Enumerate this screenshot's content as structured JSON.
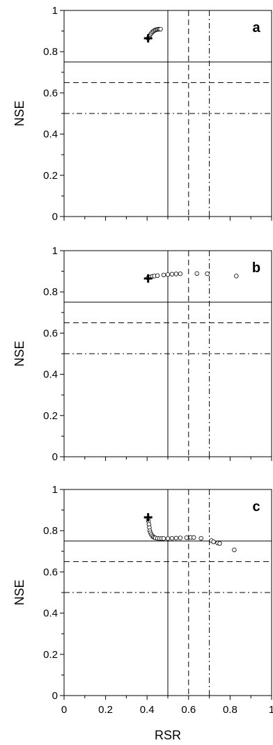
{
  "figure": {
    "xlabel": "RSR",
    "colors": {
      "axis": "#000000",
      "marker_fill": "#ffffff",
      "marker_stroke": "#000000"
    }
  },
  "chart_data": [
    {
      "type": "scatter",
      "panel_label": "a",
      "ylabel": "NSE",
      "xlim": [
        0,
        1
      ],
      "ylim": [
        0,
        1
      ],
      "xticks": [],
      "yticks": [
        "0",
        "0.2",
        "0.4",
        "0.6",
        "0.8",
        "1"
      ],
      "grid": false,
      "reference_lines": [
        {
          "orientation": "vertical",
          "value": 0.5,
          "style": "solid"
        },
        {
          "orientation": "vertical",
          "value": 0.6,
          "style": "dashed"
        },
        {
          "orientation": "vertical",
          "value": 0.7,
          "style": "dashdot"
        },
        {
          "orientation": "horizontal",
          "value": 0.75,
          "style": "solid"
        },
        {
          "orientation": "horizontal",
          "value": 0.65,
          "style": "dashed"
        },
        {
          "orientation": "horizontal",
          "value": 0.5,
          "style": "dashdot"
        }
      ],
      "cross_marker": {
        "x": 0.405,
        "y": 0.865
      },
      "points": [
        [
          0.405,
          0.865
        ],
        [
          0.41,
          0.874
        ],
        [
          0.415,
          0.882
        ],
        [
          0.42,
          0.889
        ],
        [
          0.425,
          0.895
        ],
        [
          0.43,
          0.899
        ],
        [
          0.435,
          0.903
        ],
        [
          0.44,
          0.905
        ],
        [
          0.445,
          0.907
        ],
        [
          0.45,
          0.908
        ],
        [
          0.455,
          0.909
        ],
        [
          0.46,
          0.909
        ],
        [
          0.465,
          0.909
        ]
      ]
    },
    {
      "type": "scatter",
      "panel_label": "b",
      "ylabel": "NSE",
      "xlim": [
        0,
        1
      ],
      "ylim": [
        0,
        1
      ],
      "xticks": [],
      "yticks": [
        "0",
        "0.2",
        "0.4",
        "0.6",
        "0.8",
        "1"
      ],
      "grid": false,
      "reference_lines": [
        {
          "orientation": "vertical",
          "value": 0.5,
          "style": "solid"
        },
        {
          "orientation": "vertical",
          "value": 0.6,
          "style": "dashed"
        },
        {
          "orientation": "vertical",
          "value": 0.7,
          "style": "dashdot"
        },
        {
          "orientation": "horizontal",
          "value": 0.75,
          "style": "solid"
        },
        {
          "orientation": "horizontal",
          "value": 0.65,
          "style": "dashed"
        },
        {
          "orientation": "horizontal",
          "value": 0.5,
          "style": "dashdot"
        }
      ],
      "cross_marker": {
        "x": 0.405,
        "y": 0.865
      },
      "points": [
        [
          0.405,
          0.868
        ],
        [
          0.415,
          0.872
        ],
        [
          0.425,
          0.875
        ],
        [
          0.435,
          0.877
        ],
        [
          0.45,
          0.879
        ],
        [
          0.48,
          0.882
        ],
        [
          0.5,
          0.884
        ],
        [
          0.52,
          0.886
        ],
        [
          0.54,
          0.887
        ],
        [
          0.56,
          0.888
        ],
        [
          0.64,
          0.889
        ],
        [
          0.69,
          0.888
        ],
        [
          0.83,
          0.877
        ]
      ]
    },
    {
      "type": "scatter",
      "panel_label": "c",
      "ylabel": "NSE",
      "xlabel": "RSR",
      "xlim": [
        0,
        1
      ],
      "ylim": [
        0,
        1
      ],
      "xticks": [
        "0",
        "0.2",
        "0.4",
        "0.6",
        "0.8",
        "1"
      ],
      "yticks": [
        "0",
        "0.2",
        "0.4",
        "0.6",
        "0.8",
        "1"
      ],
      "grid": false,
      "reference_lines": [
        {
          "orientation": "vertical",
          "value": 0.5,
          "style": "solid"
        },
        {
          "orientation": "vertical",
          "value": 0.6,
          "style": "dashed"
        },
        {
          "orientation": "vertical",
          "value": 0.7,
          "style": "dashdot"
        },
        {
          "orientation": "horizontal",
          "value": 0.75,
          "style": "solid"
        },
        {
          "orientation": "horizontal",
          "value": 0.65,
          "style": "dashed"
        },
        {
          "orientation": "horizontal",
          "value": 0.5,
          "style": "dashdot"
        }
      ],
      "cross_marker": {
        "x": 0.405,
        "y": 0.865
      },
      "points": [
        [
          0.405,
          0.86
        ],
        [
          0.407,
          0.845
        ],
        [
          0.409,
          0.83
        ],
        [
          0.411,
          0.815
        ],
        [
          0.413,
          0.8
        ],
        [
          0.416,
          0.79
        ],
        [
          0.42,
          0.782
        ],
        [
          0.425,
          0.775
        ],
        [
          0.43,
          0.77
        ],
        [
          0.435,
          0.767
        ],
        [
          0.44,
          0.765
        ],
        [
          0.45,
          0.763
        ],
        [
          0.46,
          0.762
        ],
        [
          0.47,
          0.762
        ],
        [
          0.48,
          0.762
        ],
        [
          0.5,
          0.762
        ],
        [
          0.52,
          0.763
        ],
        [
          0.54,
          0.764
        ],
        [
          0.56,
          0.765
        ],
        [
          0.59,
          0.766
        ],
        [
          0.61,
          0.767
        ],
        [
          0.625,
          0.767
        ],
        [
          0.66,
          0.763
        ],
        [
          0.71,
          0.752
        ],
        [
          0.72,
          0.746
        ],
        [
          0.74,
          0.74
        ],
        [
          0.75,
          0.738
        ],
        [
          0.82,
          0.707
        ]
      ]
    }
  ]
}
